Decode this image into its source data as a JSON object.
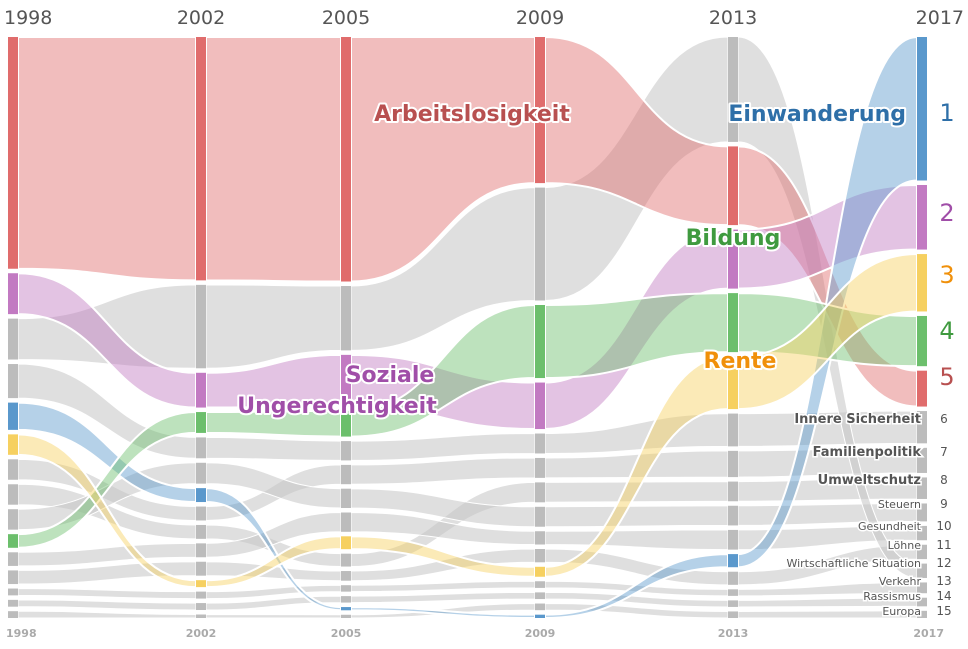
{
  "chart_data": {
    "type": "bump",
    "title": "",
    "years": [
      "1998",
      "2002",
      "2005",
      "2009",
      "2013",
      "2017"
    ],
    "topics": [
      {
        "name": "Arbeitslosigkeit",
        "color": "#e06c6c",
        "values": [
          34,
          35,
          38,
          22,
          12,
          5
        ]
      },
      {
        "name": "Soziale Ungerechtigkeit",
        "color": "#c27ac2",
        "values": [
          6,
          5,
          8,
          7,
          9,
          9
        ]
      },
      {
        "name": "Einwanderung",
        "color": "#5a98cc",
        "values": [
          4,
          2,
          0.5,
          0.5,
          2,
          20
        ]
      },
      {
        "name": "Bildung",
        "color": "#6cbf6c",
        "values": [
          2,
          3,
          4,
          11,
          9,
          7
        ]
      },
      {
        "name": "Rente",
        "color": "#f6d060",
        "values": [
          3,
          1,
          2,
          1.5,
          8,
          8
        ]
      },
      {
        "name": "Innere Sicherheit",
        "color": "#c4c4c4",
        "values": [
          5,
          3,
          3,
          3,
          5,
          4.5
        ]
      },
      {
        "name": "Familienpolitik",
        "color": "#c4c4c4",
        "values": [
          3,
          2,
          3,
          3,
          4,
          3.5
        ]
      },
      {
        "name": "Umweltschutz",
        "color": "#c4c4c4",
        "values": [
          3,
          2,
          2,
          3,
          3,
          3
        ]
      },
      {
        "name": "Steuern",
        "color": "#c4c4c4",
        "values": [
          3,
          3,
          3,
          3,
          3,
          2.5
        ]
      },
      {
        "name": "Gesundheit",
        "color": "#c4c4c4",
        "values": [
          2,
          2,
          3,
          2,
          3,
          2
        ]
      },
      {
        "name": "Löhne",
        "color": "#c4c4c4",
        "values": [
          2,
          2,
          1.5,
          2,
          2,
          2
        ]
      },
      {
        "name": "Wirtschaftliche Situation",
        "color": "#c4c4c4",
        "values": [
          6,
          12,
          10,
          17,
          16,
          2
        ]
      },
      {
        "name": "Verkehr",
        "color": "#c4c4c4",
        "values": [
          1,
          1,
          1,
          1,
          1,
          1.5
        ]
      },
      {
        "name": "Rassismus",
        "color": "#c4c4c4",
        "values": [
          1,
          1,
          1,
          1,
          1,
          1.2
        ]
      },
      {
        "name": "Europa",
        "color": "#c4c4c4",
        "values": [
          1,
          0.5,
          0.5,
          1,
          1,
          1
        ]
      }
    ],
    "ranks_2017": [
      "1",
      "2",
      "3",
      "4",
      "5",
      "6",
      "7",
      "8",
      "9",
      "10",
      "11",
      "12",
      "13",
      "14",
      "15"
    ],
    "highlight_labels": {
      "arbeitslosigkeit": "Arbeitslosigkeit",
      "soziale": "Soziale",
      "ungerechtigkeit": "Ungerechtigkeit",
      "einwanderung": "Einwanderung",
      "bildung": "Bildung",
      "rente": "Rente"
    }
  }
}
